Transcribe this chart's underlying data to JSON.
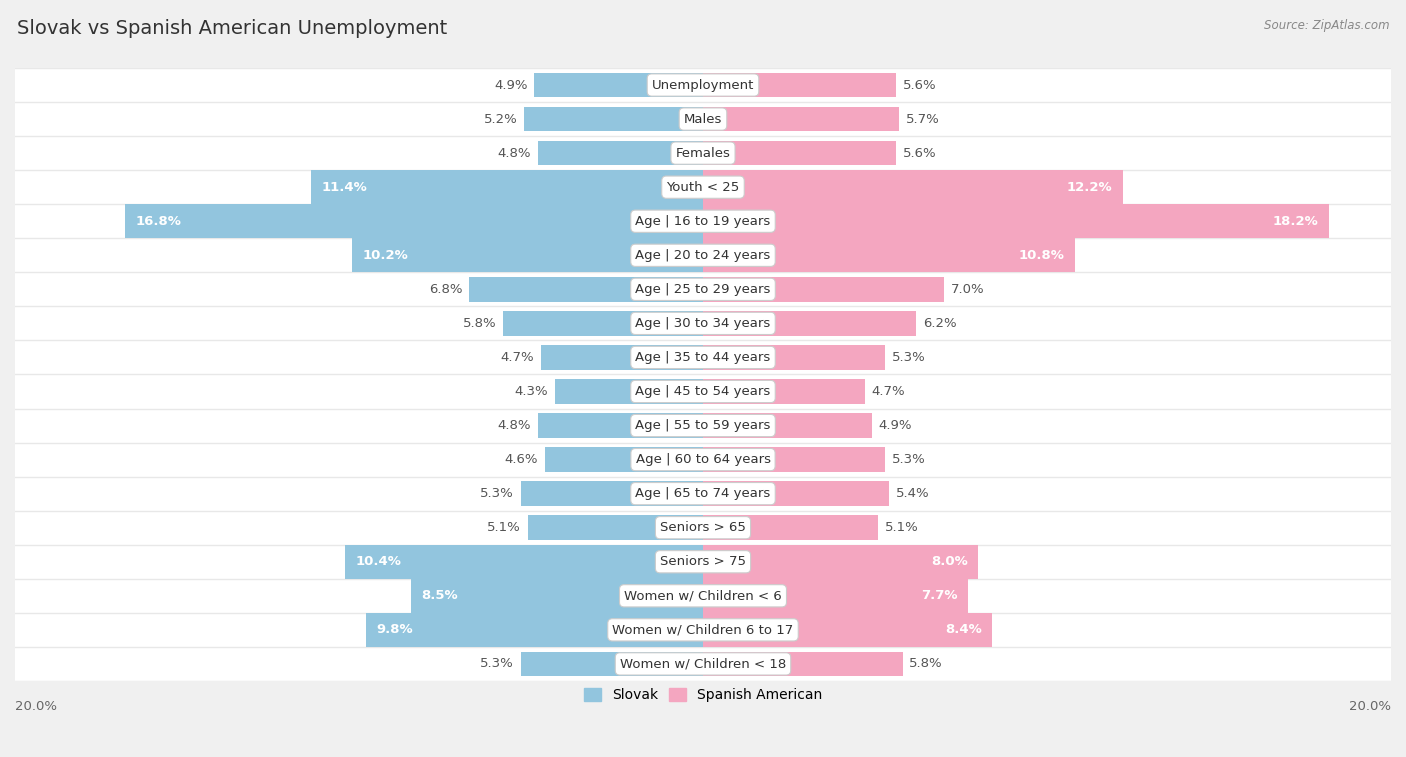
{
  "title": "Slovak vs Spanish American Unemployment",
  "source": "Source: ZipAtlas.com",
  "categories": [
    "Unemployment",
    "Males",
    "Females",
    "Youth < 25",
    "Age | 16 to 19 years",
    "Age | 20 to 24 years",
    "Age | 25 to 29 years",
    "Age | 30 to 34 years",
    "Age | 35 to 44 years",
    "Age | 45 to 54 years",
    "Age | 55 to 59 years",
    "Age | 60 to 64 years",
    "Age | 65 to 74 years",
    "Seniors > 65",
    "Seniors > 75",
    "Women w/ Children < 6",
    "Women w/ Children 6 to 17",
    "Women w/ Children < 18"
  ],
  "slovak_values": [
    4.9,
    5.2,
    4.8,
    11.4,
    16.8,
    10.2,
    6.8,
    5.8,
    4.7,
    4.3,
    4.8,
    4.6,
    5.3,
    5.1,
    10.4,
    8.5,
    9.8,
    5.3
  ],
  "spanish_values": [
    5.6,
    5.7,
    5.6,
    12.2,
    18.2,
    10.8,
    7.0,
    6.2,
    5.3,
    4.7,
    4.9,
    5.3,
    5.4,
    5.1,
    8.0,
    7.7,
    8.4,
    5.8
  ],
  "slovak_color": "#92c5de",
  "spanish_color": "#f4a6c0",
  "slovak_highlight_color": "#5ba3d0",
  "spanish_highlight_color": "#e8799e",
  "background_color": "#f0f0f0",
  "row_white_color": "#ffffff",
  "row_gray_color": "#e8e8e8",
  "bar_height": 0.72,
  "x_max": 20.0,
  "legend_slovak": "Slovak",
  "legend_spanish": "Spanish American",
  "title_fontsize": 14,
  "label_fontsize": 9.5,
  "axis_fontsize": 9.5,
  "value_threshold": 8.0
}
